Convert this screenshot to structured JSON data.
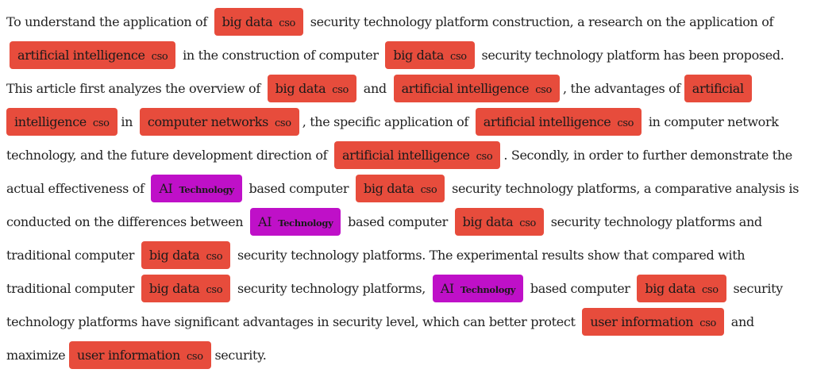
{
  "entity_colors": {
    "cso": "#e74c3c",
    "technology": "#bf10c8"
  },
  "segments": [
    {
      "t": "text",
      "v": "To understand the application of"
    },
    {
      "t": "ent",
      "v": "big data",
      "label": "cso"
    },
    {
      "t": "text",
      "v": "security technology platform construction, a research on the application of"
    },
    {
      "t": "ent",
      "v": "artificial intelligence",
      "label": "cso"
    },
    {
      "t": "text",
      "v": "in the construction of computer"
    },
    {
      "t": "ent",
      "v": "big data",
      "label": "cso"
    },
    {
      "t": "text",
      "v": "security technology platform has been proposed. This article first analyzes the overview of"
    },
    {
      "t": "ent",
      "v": "big data",
      "label": "cso"
    },
    {
      "t": "text",
      "v": "and"
    },
    {
      "t": "ent",
      "v": "artificial intelligence",
      "label": "cso"
    },
    {
      "t": "text",
      "v": ", the advantages of"
    },
    {
      "t": "ent",
      "v": "artificial intelligence",
      "label": "cso",
      "split": true
    },
    {
      "t": "text",
      "v": "in"
    },
    {
      "t": "ent",
      "v": "computer networks",
      "label": "cso"
    },
    {
      "t": "text",
      "v": ", the specific application of"
    },
    {
      "t": "ent",
      "v": "artificial intelligence",
      "label": "cso"
    },
    {
      "t": "text",
      "v": "in computer network technology, and the future development direction of"
    },
    {
      "t": "ent",
      "v": "artificial intelligence",
      "label": "cso"
    },
    {
      "t": "text",
      "v": ". Secondly, in order to further demonstrate the actual effectiveness of"
    },
    {
      "t": "ent",
      "v": "AI",
      "label": "Technology",
      "kind": "ai"
    },
    {
      "t": "text",
      "v": "based computer"
    },
    {
      "t": "ent",
      "v": "big data",
      "label": "cso"
    },
    {
      "t": "text",
      "v": "security technology platforms, a comparative analysis is conducted on the differences between"
    },
    {
      "t": "ent",
      "v": "AI",
      "label": "Technology",
      "kind": "ai"
    },
    {
      "t": "text",
      "v": "based computer"
    },
    {
      "t": "ent",
      "v": "big data",
      "label": "cso"
    },
    {
      "t": "text",
      "v": "security technology platforms and traditional computer"
    },
    {
      "t": "ent",
      "v": "big data",
      "label": "cso"
    },
    {
      "t": "text",
      "v": "security technology platforms. The experimental results show that compared with traditional computer"
    },
    {
      "t": "ent",
      "v": "big data",
      "label": "cso"
    },
    {
      "t": "text",
      "v": "security technology platforms,"
    },
    {
      "t": "ent",
      "v": "AI",
      "label": "Technology",
      "kind": "ai"
    },
    {
      "t": "text",
      "v": "based computer"
    },
    {
      "t": "ent",
      "v": "big data",
      "label": "cso"
    },
    {
      "t": "text",
      "v": "security technology platforms have significant advantages in security level, which can better protect"
    },
    {
      "t": "ent",
      "v": "user information",
      "label": "cso"
    },
    {
      "t": "text",
      "v": "and maximize"
    },
    {
      "t": "ent",
      "v": "user information",
      "label": "cso",
      "split": true
    },
    {
      "t": "text",
      "v": "security."
    }
  ]
}
